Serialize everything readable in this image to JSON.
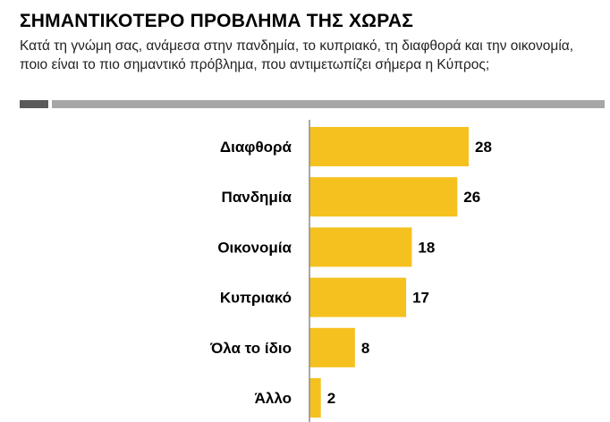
{
  "header": {
    "title": "ΣΗΜΑΝΤΙΚΟΤΕΡΟ ΠΡΟΒΛΗΜΑ ΤΗΣ ΧΩΡΑΣ",
    "subtitle": "Κατά τη γνώμη σας, ανάμεσα στην πανδημία, το κυπριακό, τη διαφθορά και την οικονομία, ποιο είναι το πιο σημαντικό πρόβλημα, που αντιμετωπίζει σήμερα η Κύπρος;"
  },
  "colors": {
    "bar": "#F5C11E",
    "axis": "#8c8c8c",
    "rule_dark": "#5a5a5a",
    "rule_light": "#a6a6a6"
  },
  "chart_data": {
    "type": "bar",
    "orientation": "horizontal",
    "categories": [
      "Διαφθορά",
      "Πανδημία",
      "Οικονομία",
      "Κυπριακό",
      "Όλα το ίδιο",
      "Άλλο"
    ],
    "values": [
      28,
      26,
      18,
      17,
      8,
      2
    ],
    "data_labels": [
      "28",
      "26",
      "18",
      "17",
      "8",
      "2"
    ],
    "xlim": [
      0,
      28
    ],
    "grid": false,
    "legend": "none"
  }
}
